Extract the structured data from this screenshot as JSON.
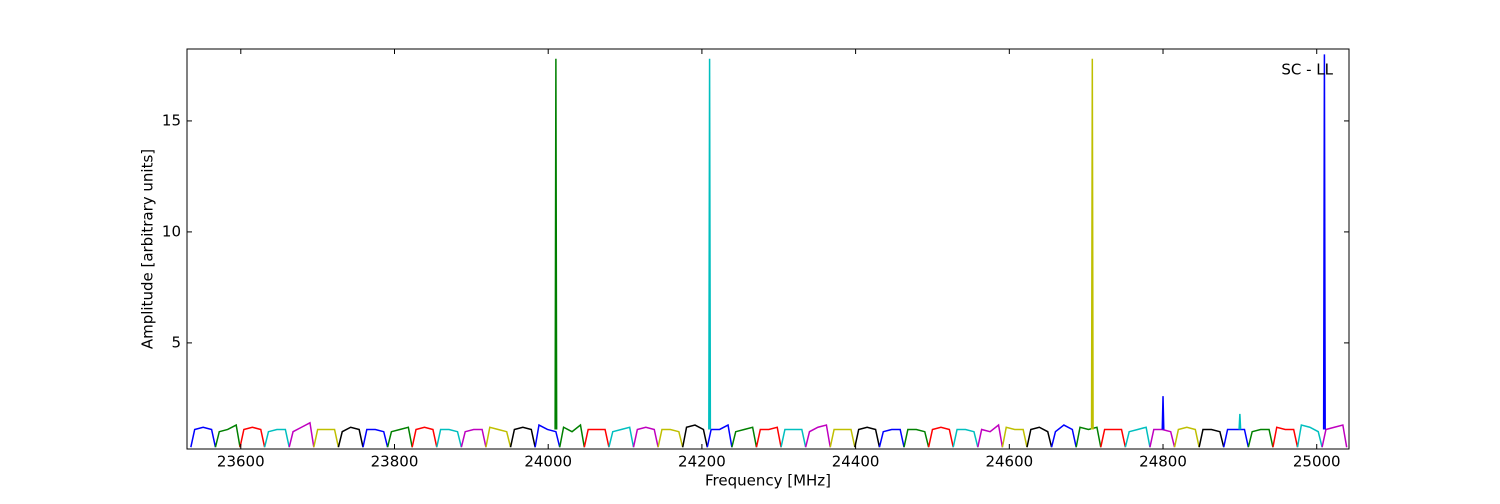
{
  "chart_data": {
    "type": "line",
    "annotation": "SC - LL",
    "x_label": "Frequency [MHz]",
    "y_label": "Amplitude [arbitrary units]",
    "xlim": [
      23530,
      25042
    ],
    "ylim": [
      0.22,
      18.24
    ],
    "xticks": [
      23600,
      23800,
      24000,
      24200,
      24400,
      24600,
      24800,
      25000
    ],
    "yticks": [
      5,
      10,
      15
    ],
    "series": [
      {
        "color": "#0000ff",
        "x": [
          23535,
          23540,
          23551,
          23562,
          23567
        ],
        "values": [
          0.3,
          1.1,
          1.2,
          1.1,
          0.3
        ]
      },
      {
        "color": "#008000",
        "x": [
          23567,
          23572,
          23583,
          23594,
          23599
        ],
        "values": [
          0.3,
          1.0,
          1.1,
          1.3,
          0.3
        ]
      },
      {
        "color": "#ff0000",
        "x": [
          23599,
          23604,
          23615,
          23626,
          23631
        ],
        "values": [
          0.3,
          1.1,
          1.2,
          1.1,
          0.3
        ]
      },
      {
        "color": "#00bfbf",
        "x": [
          23631,
          23636,
          23647,
          23658,
          23663
        ],
        "values": [
          0.3,
          1.0,
          1.1,
          1.1,
          0.3
        ]
      },
      {
        "color": "#bf00bf",
        "x": [
          23663,
          23668,
          23679,
          23690,
          23695
        ],
        "values": [
          0.3,
          1.0,
          1.2,
          1.4,
          0.3
        ]
      },
      {
        "color": "#bfbf00",
        "x": [
          23695,
          23700,
          23711,
          23722,
          23727
        ],
        "values": [
          0.3,
          1.1,
          1.1,
          1.1,
          0.3
        ]
      },
      {
        "color": "#000000",
        "x": [
          23727,
          23732,
          23743,
          23754,
          23759
        ],
        "values": [
          0.3,
          1.0,
          1.2,
          1.1,
          0.3
        ]
      },
      {
        "color": "#0000ff",
        "x": [
          23759,
          23764,
          23775,
          23786,
          23791
        ],
        "values": [
          0.3,
          1.1,
          1.1,
          1.0,
          0.3
        ]
      },
      {
        "color": "#008000",
        "x": [
          23791,
          23796,
          23807,
          23818,
          23823
        ],
        "values": [
          0.3,
          1.0,
          1.1,
          1.2,
          0.3
        ]
      },
      {
        "color": "#ff0000",
        "x": [
          23823,
          23828,
          23839,
          23850,
          23855
        ],
        "values": [
          0.3,
          1.1,
          1.2,
          1.1,
          0.3
        ]
      },
      {
        "color": "#00bfbf",
        "x": [
          23855,
          23860,
          23871,
          23882,
          23887
        ],
        "values": [
          0.3,
          1.1,
          1.1,
          1.0,
          0.3
        ]
      },
      {
        "color": "#bf00bf",
        "x": [
          23887,
          23892,
          23903,
          23914,
          23919
        ],
        "values": [
          0.3,
          1.0,
          1.1,
          1.1,
          0.3
        ]
      },
      {
        "color": "#bfbf00",
        "x": [
          23919,
          23924,
          23935,
          23946,
          23951
        ],
        "values": [
          0.3,
          1.2,
          1.1,
          1.0,
          0.3
        ]
      },
      {
        "color": "#000000",
        "x": [
          23951,
          23956,
          23967,
          23978,
          23983
        ],
        "values": [
          0.3,
          1.1,
          1.2,
          1.1,
          0.3
        ]
      },
      {
        "color": "#0000ff",
        "x": [
          23983,
          23988,
          23999,
          24010,
          24015
        ],
        "values": [
          0.3,
          1.3,
          1.1,
          1.0,
          0.3
        ]
      },
      {
        "color": "#008000",
        "x": [
          24015,
          24020,
          24031,
          24042,
          24047
        ],
        "values": [
          0.3,
          1.2,
          1.0,
          1.3,
          0.3
        ]
      },
      {
        "color": "#ff0000",
        "x": [
          24047,
          24052,
          24063,
          24074,
          24079
        ],
        "values": [
          0.3,
          1.1,
          1.1,
          1.1,
          0.3
        ]
      },
      {
        "color": "#00bfbf",
        "x": [
          24079,
          24084,
          24095,
          24106,
          24111
        ],
        "values": [
          0.3,
          1.0,
          1.1,
          1.2,
          0.3
        ]
      },
      {
        "color": "#bf00bf",
        "x": [
          24111,
          24116,
          24127,
          24138,
          24143
        ],
        "values": [
          0.3,
          1.1,
          1.2,
          1.1,
          0.3
        ]
      },
      {
        "color": "#bfbf00",
        "x": [
          24143,
          24148,
          24159,
          24170,
          24175
        ],
        "values": [
          0.3,
          1.1,
          1.1,
          1.0,
          0.3
        ]
      },
      {
        "color": "#000000",
        "x": [
          24175,
          24180,
          24191,
          24202,
          24207
        ],
        "values": [
          0.3,
          1.2,
          1.3,
          1.1,
          0.3
        ]
      },
      {
        "color": "#0000ff",
        "x": [
          24207,
          24212,
          24223,
          24234,
          24239
        ],
        "values": [
          0.3,
          1.1,
          1.1,
          1.3,
          0.3
        ]
      },
      {
        "color": "#008000",
        "x": [
          24239,
          24244,
          24255,
          24266,
          24271
        ],
        "values": [
          0.3,
          1.0,
          1.1,
          1.2,
          0.3
        ]
      },
      {
        "color": "#ff0000",
        "x": [
          24271,
          24276,
          24287,
          24298,
          24303
        ],
        "values": [
          0.3,
          1.1,
          1.1,
          1.2,
          0.3
        ]
      },
      {
        "color": "#00bfbf",
        "x": [
          24303,
          24308,
          24319,
          24330,
          24335
        ],
        "values": [
          0.3,
          1.1,
          1.1,
          1.1,
          0.3
        ]
      },
      {
        "color": "#bf00bf",
        "x": [
          24335,
          24340,
          24351,
          24362,
          24367
        ],
        "values": [
          0.3,
          1.0,
          1.2,
          1.3,
          0.3
        ]
      },
      {
        "color": "#bfbf00",
        "x": [
          24367,
          24372,
          24383,
          24394,
          24399
        ],
        "values": [
          0.3,
          1.1,
          1.1,
          1.1,
          0.3
        ]
      },
      {
        "color": "#000000",
        "x": [
          24399,
          24404,
          24415,
          24426,
          24431
        ],
        "values": [
          0.3,
          1.1,
          1.2,
          1.1,
          0.3
        ]
      },
      {
        "color": "#0000ff",
        "x": [
          24431,
          24436,
          24447,
          24458,
          24463
        ],
        "values": [
          0.3,
          1.0,
          1.1,
          1.1,
          0.3
        ]
      },
      {
        "color": "#008000",
        "x": [
          24463,
          24468,
          24479,
          24490,
          24495
        ],
        "values": [
          0.3,
          1.1,
          1.1,
          1.0,
          0.3
        ]
      },
      {
        "color": "#ff0000",
        "x": [
          24495,
          24500,
          24511,
          24522,
          24527
        ],
        "values": [
          0.3,
          1.1,
          1.2,
          1.1,
          0.3
        ]
      },
      {
        "color": "#00bfbf",
        "x": [
          24527,
          24532,
          24543,
          24554,
          24559
        ],
        "values": [
          0.3,
          1.1,
          1.1,
          1.0,
          0.3
        ]
      },
      {
        "color": "#bf00bf",
        "x": [
          24559,
          24564,
          24575,
          24586,
          24591
        ],
        "values": [
          0.3,
          1.1,
          1.0,
          1.3,
          0.3
        ]
      },
      {
        "color": "#bfbf00",
        "x": [
          24591,
          24596,
          24607,
          24618,
          24623
        ],
        "values": [
          0.3,
          1.2,
          1.1,
          1.1,
          0.3
        ]
      },
      {
        "color": "#000000",
        "x": [
          24623,
          24628,
          24639,
          24650,
          24655
        ],
        "values": [
          0.3,
          1.1,
          1.2,
          1.0,
          0.3
        ]
      },
      {
        "color": "#0000ff",
        "x": [
          24655,
          24660,
          24671,
          24682,
          24687
        ],
        "values": [
          0.3,
          1.0,
          1.3,
          1.1,
          0.3
        ]
      },
      {
        "color": "#008000",
        "x": [
          24687,
          24692,
          24703,
          24714,
          24719
        ],
        "values": [
          0.3,
          1.2,
          1.1,
          1.2,
          0.3
        ]
      },
      {
        "color": "#ff0000",
        "x": [
          24719,
          24724,
          24735,
          24746,
          24751
        ],
        "values": [
          0.3,
          1.1,
          1.1,
          1.1,
          0.3
        ]
      },
      {
        "color": "#00bfbf",
        "x": [
          24751,
          24756,
          24767,
          24778,
          24783
        ],
        "values": [
          0.3,
          1.0,
          1.1,
          1.2,
          0.3
        ]
      },
      {
        "color": "#bf00bf",
        "x": [
          24783,
          24788,
          24799,
          24810,
          24815
        ],
        "values": [
          0.3,
          1.1,
          1.1,
          1.0,
          0.3
        ]
      },
      {
        "color": "#bfbf00",
        "x": [
          24815,
          24820,
          24831,
          24842,
          24847
        ],
        "values": [
          0.3,
          1.1,
          1.2,
          1.1,
          0.3
        ]
      },
      {
        "color": "#000000",
        "x": [
          24847,
          24852,
          24863,
          24874,
          24879
        ],
        "values": [
          0.3,
          1.1,
          1.1,
          1.0,
          0.3
        ]
      },
      {
        "color": "#0000ff",
        "x": [
          24879,
          24884,
          24895,
          24906,
          24911
        ],
        "values": [
          0.3,
          1.1,
          1.1,
          1.1,
          0.3
        ]
      },
      {
        "color": "#008000",
        "x": [
          24911,
          24916,
          24927,
          24938,
          24943
        ],
        "values": [
          0.3,
          1.0,
          1.1,
          1.1,
          0.3
        ]
      },
      {
        "color": "#ff0000",
        "x": [
          24943,
          24948,
          24959,
          24970,
          24975
        ],
        "values": [
          0.3,
          1.2,
          1.1,
          1.1,
          0.3
        ]
      },
      {
        "color": "#00bfbf",
        "x": [
          24975,
          24980,
          24991,
          25002,
          25007
        ],
        "values": [
          0.3,
          1.3,
          1.2,
          1.0,
          0.3
        ]
      },
      {
        "color": "#bf00bf",
        "x": [
          25007,
          25012,
          25023,
          25034,
          25039
        ],
        "values": [
          0.3,
          1.1,
          1.2,
          1.3,
          0.3
        ]
      },
      {
        "color": "#008000",
        "x": [
          24009,
          24010,
          24011
        ],
        "values": [
          1.1,
          17.8,
          1.1
        ]
      },
      {
        "color": "#00bfbf",
        "x": [
          24209,
          24210,
          24211
        ],
        "values": [
          1.1,
          17.8,
          1.1
        ]
      },
      {
        "color": "#bfbf00",
        "x": [
          24707,
          24708,
          24709
        ],
        "values": [
          1.1,
          17.8,
          1.1
        ]
      },
      {
        "color": "#0000ff",
        "x": [
          25009,
          25010,
          25011
        ],
        "values": [
          1.1,
          18.0,
          1.1
        ]
      },
      {
        "color": "#0000ff",
        "x": [
          24799,
          24800,
          24801
        ],
        "values": [
          1.1,
          2.6,
          1.1
        ]
      },
      {
        "color": "#00bfbf",
        "x": [
          24899,
          24900,
          24901
        ],
        "values": [
          1.1,
          1.8,
          1.1
        ]
      }
    ]
  }
}
